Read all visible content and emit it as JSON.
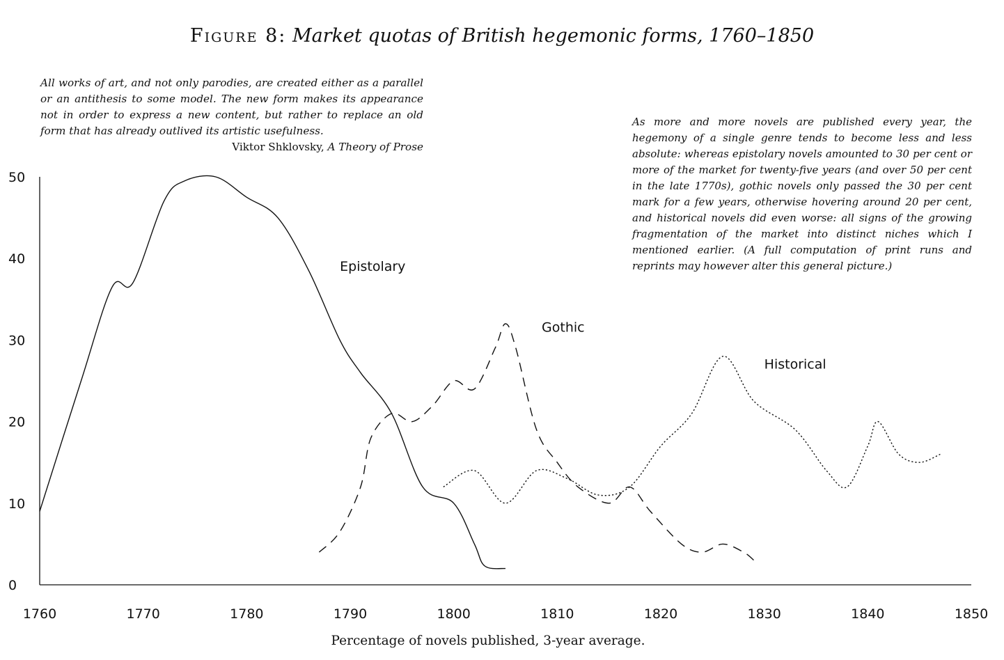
{
  "title": {
    "lead": "Figure 8:",
    "main": "Market quotas of British hegemonic forms, 1760–1850"
  },
  "quote_left": {
    "text": "All works of art, and not only parodies, are created either as a parallel or an antithesis to some model. The new form makes its appearance not in order to express a new content, but rather to replace an old form that has already outlived its artistic usefulness.",
    "attribution_author": "Viktor Shklovsky, ",
    "attribution_work": "A Theory of Prose"
  },
  "quote_right": {
    "text": "As more and more novels are published every year, the hegemony of a single genre tends to become less and less absolute: whereas epistolary novels amounted to 30 per cent or more of the market for twenty-five years (and over 50 per cent in the late 1770s), gothic novels only passed the 30 per cent mark for a few years, otherwise hovering around 20 per cent, and historical novels did even worse: all signs of the growing fragmentation of the market into distinct niches which I mentioned earlier. (A full computation of print runs and reprints may however alter this general picture.)"
  },
  "chart_data": {
    "type": "line",
    "title": "",
    "xlabel": "Percentage of novels published, 3-year average.",
    "ylabel": "",
    "xlim": [
      1760,
      1850
    ],
    "ylim": [
      0,
      50
    ],
    "x_ticks": [
      1760,
      1770,
      1780,
      1790,
      1800,
      1810,
      1820,
      1830,
      1840,
      1850
    ],
    "y_ticks": [
      0,
      10,
      20,
      30,
      40,
      50
    ],
    "grid": false,
    "legend": "none",
    "series": [
      {
        "name": "Epistolary",
        "style": "solid",
        "points": [
          [
            1760,
            9
          ],
          [
            1764,
            25
          ],
          [
            1767,
            36.5
          ],
          [
            1769,
            37
          ],
          [
            1772,
            47
          ],
          [
            1774,
            49.5
          ],
          [
            1777,
            50
          ],
          [
            1780,
            47.5
          ],
          [
            1783,
            45
          ],
          [
            1786,
            38.5
          ],
          [
            1789,
            30
          ],
          [
            1791,
            26
          ],
          [
            1794,
            21
          ],
          [
            1797,
            12
          ],
          [
            1800,
            10
          ],
          [
            1802,
            5
          ],
          [
            1803,
            2.3
          ],
          [
            1805,
            2
          ]
        ]
      },
      {
        "name": "Gothic",
        "style": "dashed",
        "points": [
          [
            1787,
            4
          ],
          [
            1789,
            6.5
          ],
          [
            1791,
            12
          ],
          [
            1792,
            18
          ],
          [
            1794,
            21
          ],
          [
            1796,
            20
          ],
          [
            1798,
            22
          ],
          [
            1800,
            25
          ],
          [
            1802,
            24
          ],
          [
            1804,
            29
          ],
          [
            1805,
            32
          ],
          [
            1806,
            29
          ],
          [
            1808,
            19
          ],
          [
            1810,
            15
          ],
          [
            1812,
            12
          ],
          [
            1815,
            10
          ],
          [
            1817,
            12
          ],
          [
            1819,
            9
          ],
          [
            1822,
            5
          ],
          [
            1824,
            4
          ],
          [
            1826,
            5
          ],
          [
            1828,
            4
          ],
          [
            1829,
            3
          ]
        ]
      },
      {
        "name": "Historical",
        "style": "dotted",
        "points": [
          [
            1799,
            12
          ],
          [
            1802,
            14
          ],
          [
            1805,
            10
          ],
          [
            1808,
            14
          ],
          [
            1811,
            13
          ],
          [
            1814,
            11
          ],
          [
            1817,
            12
          ],
          [
            1820,
            17
          ],
          [
            1823,
            21
          ],
          [
            1826,
            28
          ],
          [
            1829,
            22.5
          ],
          [
            1833,
            19
          ],
          [
            1836,
            14
          ],
          [
            1838,
            12
          ],
          [
            1840,
            17
          ],
          [
            1841,
            20
          ],
          [
            1843,
            16
          ],
          [
            1845,
            15
          ],
          [
            1847,
            16
          ]
        ]
      }
    ]
  }
}
